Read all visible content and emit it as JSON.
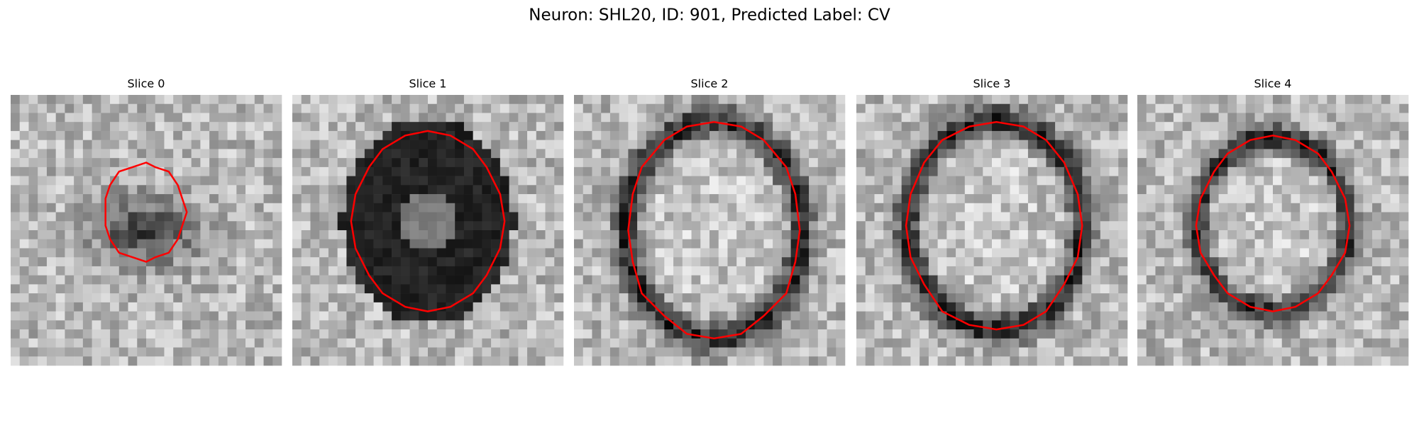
{
  "title": "Neuron: SHL20, ID: 901, Predicted Label: CV",
  "panels": [
    {
      "title": "Slice 0"
    },
    {
      "title": "Slice 1"
    },
    {
      "title": "Slice 2"
    },
    {
      "title": "Slice 3"
    },
    {
      "title": "Slice 4"
    }
  ]
}
